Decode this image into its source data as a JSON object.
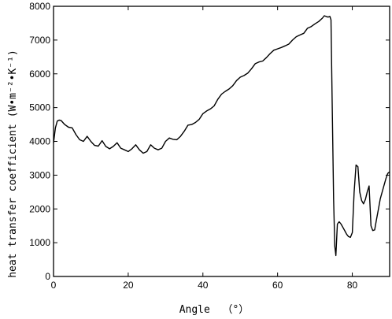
{
  "chart_data": {
    "type": "line",
    "title": "",
    "xlabel": "Angle  （°）",
    "ylabel": "heat transfer coefficient (W•m⁻²•K⁻¹)",
    "xlim": [
      0,
      90
    ],
    "ylim": [
      0,
      8000
    ],
    "xticks": [
      0,
      20,
      40,
      60,
      80
    ],
    "yticks": [
      0,
      1000,
      2000,
      3000,
      4000,
      5000,
      6000,
      7000,
      8000
    ],
    "grid": false,
    "legend": "none",
    "series": [
      {
        "x": [
          0,
          0.5,
          1,
          1.5,
          2,
          3,
          4,
          5,
          6,
          7,
          8,
          9,
          10,
          11,
          12,
          13,
          14,
          15,
          16,
          17,
          18,
          19,
          20,
          21,
          22,
          23,
          24,
          25,
          26,
          27,
          28,
          29,
          30,
          31,
          32,
          33,
          34,
          35,
          36,
          37,
          38,
          39,
          40,
          41,
          42,
          43,
          44,
          45,
          46,
          47,
          48,
          49,
          50,
          51,
          52,
          53,
          54,
          55,
          56,
          57,
          58,
          59,
          60,
          61,
          62,
          63,
          64,
          65,
          66,
          67,
          68,
          69,
          70,
          71,
          72,
          72.5,
          73,
          73.5,
          74,
          74.3,
          74.6,
          75,
          75.3,
          75.6,
          76,
          76.5,
          77,
          77.5,
          78,
          78.5,
          79,
          79.5,
          80,
          80.5,
          81,
          81.5,
          82,
          82.5,
          83,
          83.5,
          84,
          84.5,
          85,
          85.5,
          86,
          86.5,
          87,
          87.5,
          88,
          88.5,
          89,
          89.5,
          90
        ],
        "y": [
          3950,
          4400,
          4600,
          4630,
          4620,
          4500,
          4420,
          4400,
          4200,
          4050,
          4000,
          4150,
          4000,
          3880,
          3860,
          4020,
          3850,
          3780,
          3850,
          3960,
          3800,
          3750,
          3700,
          3780,
          3900,
          3750,
          3650,
          3700,
          3900,
          3800,
          3750,
          3800,
          4000,
          4100,
          4060,
          4050,
          4150,
          4300,
          4480,
          4500,
          4560,
          4650,
          4820,
          4900,
          4960,
          5050,
          5250,
          5400,
          5480,
          5550,
          5650,
          5800,
          5900,
          5950,
          6020,
          6150,
          6300,
          6350,
          6380,
          6480,
          6600,
          6700,
          6740,
          6780,
          6830,
          6880,
          7000,
          7100,
          7150,
          7200,
          7350,
          7400,
          7480,
          7550,
          7650,
          7720,
          7700,
          7680,
          7700,
          7600,
          5300,
          2300,
          900,
          620,
          1550,
          1620,
          1550,
          1450,
          1350,
          1250,
          1180,
          1160,
          1300,
          2500,
          3300,
          3250,
          2500,
          2250,
          2150,
          2280,
          2500,
          2680,
          1500,
          1360,
          1380,
          1700,
          2000,
          2300,
          2500,
          2700,
          2900,
          3050,
          3100
        ]
      }
    ]
  },
  "colors": {
    "line": "#000000",
    "axes": "#000000",
    "background": "#ffffff"
  }
}
